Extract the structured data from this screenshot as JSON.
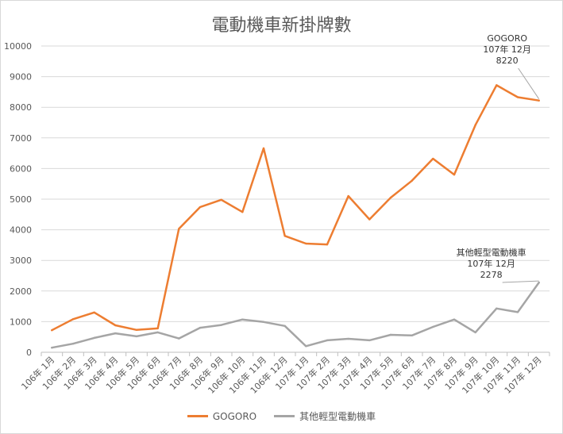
{
  "chart_data": {
    "type": "line",
    "title": "電動機車新掛牌數",
    "categories": [
      "106年 1月",
      "106年 2月",
      "106年 3月",
      "106年 4月",
      "106年 5月",
      "106年 6月",
      "106年 7月",
      "106年 8月",
      "106年 9月",
      "106年 10月",
      "106年 11月",
      "106年 12月",
      "107年 1月",
      "107年 2月",
      "107年 3月",
      "107年 4月",
      "107年 5月",
      "107年 6月",
      "107年 7月",
      "107年 8月",
      "107年 9月",
      "107年 10月",
      "107年 11月",
      "107年 12月"
    ],
    "ylim": [
      0,
      10000
    ],
    "yticks": [
      0,
      1000,
      2000,
      3000,
      4000,
      5000,
      6000,
      7000,
      8000,
      9000,
      10000
    ],
    "grid": true,
    "legend_position": "bottom",
    "series": [
      {
        "name": "GOGORO",
        "color": "#ED7D31",
        "values": [
          720,
          1080,
          1300,
          880,
          730,
          780,
          4030,
          4740,
          4980,
          4580,
          6660,
          3800,
          3550,
          3520,
          5100,
          4340,
          5050,
          5600,
          6320,
          5800,
          7420,
          8720,
          8330,
          8220
        ]
      },
      {
        "name": "其他輕型電動機車",
        "color": "#A5A5A5",
        "values": [
          150,
          280,
          470,
          620,
          520,
          650,
          450,
          800,
          890,
          1070,
          990,
          860,
          200,
          390,
          440,
          390,
          570,
          550,
          830,
          1070,
          650,
          1430,
          1310,
          2278
        ]
      }
    ],
    "annotations": [
      {
        "series": 0,
        "lines": [
          "GOGORO",
          "107年 12月",
          "8220"
        ]
      },
      {
        "series": 1,
        "lines": [
          "其他輕型電動機車",
          "107年 12月",
          "2278"
        ]
      }
    ]
  }
}
